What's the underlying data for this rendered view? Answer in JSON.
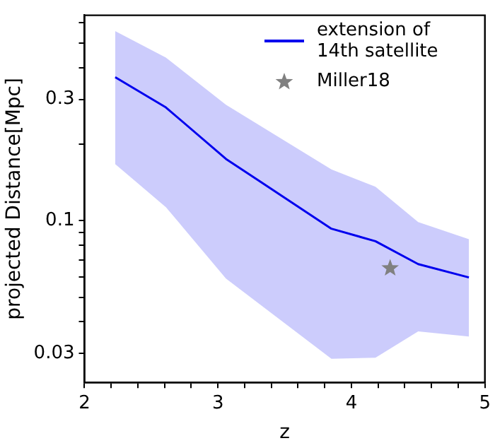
{
  "chart_data": {
    "type": "line",
    "xlabel": "z",
    "ylabel": "projected Distance[Mpc]",
    "log": "y",
    "xlim": [
      2,
      5
    ],
    "ylim": [
      0.0231,
      0.643
    ],
    "xticks": [
      2,
      {
        "value": 2.2,
        "label": null
      },
      {
        "value": 2.4,
        "label": null
      },
      {
        "value": 2.6,
        "label": null
      },
      {
        "value": 2.8,
        "label": null
      },
      3,
      {
        "value": 3.2,
        "label": null
      },
      {
        "value": 3.4,
        "label": null
      },
      {
        "value": 3.6,
        "label": null
      },
      {
        "value": 3.8,
        "label": null
      },
      4,
      {
        "value": 4.2,
        "label": null
      },
      {
        "value": 4.4,
        "label": null
      },
      {
        "value": 4.6,
        "label": null
      },
      {
        "value": 4.8,
        "label": null
      },
      5
    ],
    "yticks": [
      0.03,
      {
        "value": 0.04,
        "label": null
      },
      {
        "value": 0.05,
        "label": null
      },
      {
        "value": 0.06,
        "label": null
      },
      {
        "value": 0.07,
        "label": null
      },
      {
        "value": 0.08,
        "label": null
      },
      {
        "value": 0.09,
        "label": null
      },
      0.1,
      {
        "value": 0.2,
        "label": null
      },
      0.3,
      {
        "value": 0.4,
        "label": null
      },
      {
        "value": 0.5,
        "label": null
      },
      {
        "value": 0.6,
        "label": null
      }
    ],
    "legend": "top right",
    "grid": false,
    "series": [
      {
        "name": "extension of 14th satellite",
        "type": "line",
        "color": "#0000ee",
        "marker": "none",
        "x": [
          2.23,
          2.61,
          3.06,
          3.85,
          4.18,
          4.5,
          4.88
        ],
        "values": [
          0.367,
          0.279,
          0.175,
          0.093,
          0.083,
          0.0675,
          0.0598
        ],
        "lower": [
          0.167,
          0.113,
          0.0592,
          0.0286,
          0.0289,
          0.0367,
          0.035
        ],
        "upper": [
          0.557,
          0.438,
          0.286,
          0.159,
          0.136,
          0.0988,
          0.0846
        ]
      },
      {
        "name": "Miller18",
        "type": "scatter",
        "color": "#808080",
        "marker": "star",
        "x": [
          4.29
        ],
        "values": [
          0.065
        ]
      }
    ]
  }
}
